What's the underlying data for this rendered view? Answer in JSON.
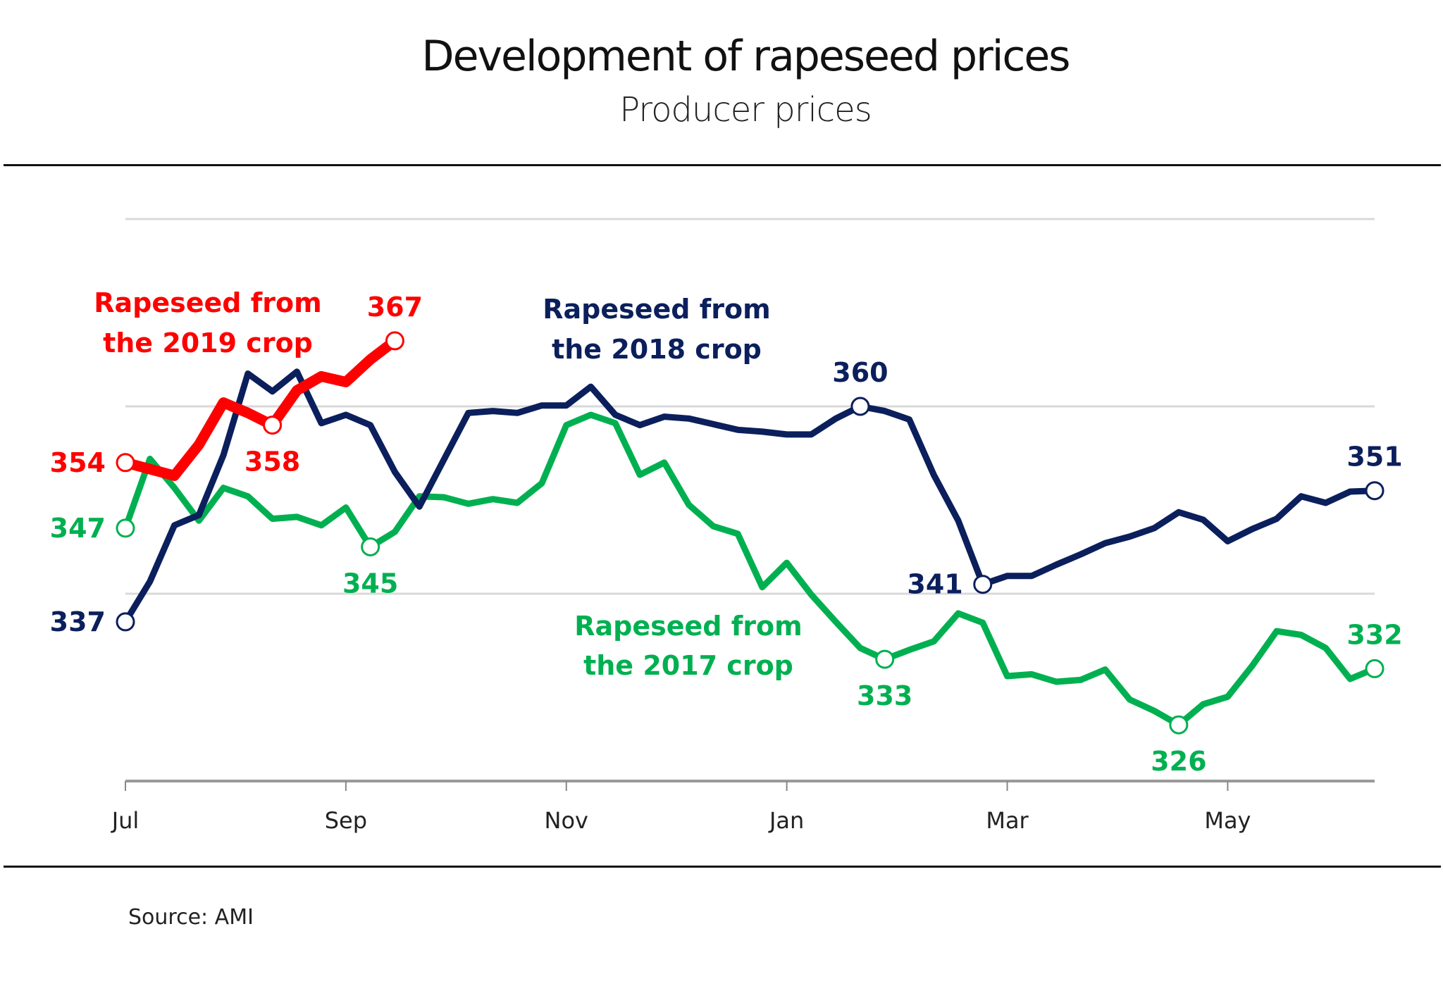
{
  "header": {
    "title": "Development of rapeseed prices",
    "subtitle": "Producer prices"
  },
  "footer": {
    "source": "Source: AMI"
  },
  "colors": {
    "crop2017": "#00b050",
    "crop2018": "#0b1f5c",
    "crop2019": "#ff0000",
    "grid": "#d9d9d9"
  },
  "chart_data": {
    "type": "line",
    "title": "Development of rapeseed prices",
    "subtitle": "Producer prices",
    "xlabel": "",
    "ylabel": "",
    "ylim": [
      320,
      380
    ],
    "yticks_gridlines": [
      340,
      360,
      380
    ],
    "grid": true,
    "x_unit": "weeks from start of July (crop year Jul–Jun)",
    "x_tick_labels": [
      {
        "label": "Jul",
        "week": 0
      },
      {
        "label": "Sep",
        "week": 9
      },
      {
        "label": "Nov",
        "week": 18
      },
      {
        "label": "Jan",
        "week": 27
      },
      {
        "label": "Mar",
        "week": 36
      },
      {
        "label": "May",
        "week": 45
      }
    ],
    "x_end_week": 51,
    "series": [
      {
        "name": "Rapeseed from the 2017 crop",
        "label_lines": [
          "Rapeseed from",
          "the 2017 crop"
        ],
        "color_key": "crop2017",
        "values": [
          347,
          354.4,
          351.3,
          347.8,
          351.3,
          350.4,
          348,
          348.2,
          347.3,
          349.2,
          345,
          346.6,
          350.4,
          350.3,
          349.6,
          350.1,
          349.7,
          351.8,
          358,
          359.1,
          358.2,
          352.7,
          354,
          349.5,
          347.2,
          346.4,
          340.7,
          343.3,
          339.9,
          337,
          334.2,
          333,
          334,
          334.9,
          337.9,
          336.9,
          331.2,
          331.4,
          330.6,
          330.8,
          331.9,
          328.7,
          327.5,
          326,
          328.2,
          329,
          332.3,
          336,
          335.6,
          334.2,
          330.9,
          332
        ],
        "annotations": [
          {
            "index": 0,
            "text": "347",
            "pos": "left"
          },
          {
            "index": 10,
            "text": "345",
            "pos": "below"
          },
          {
            "index": 31,
            "text": "333",
            "pos": "below"
          },
          {
            "index": 43,
            "text": "326",
            "pos": "below"
          },
          {
            "index": 51,
            "text": "332",
            "pos": "above"
          }
        ]
      },
      {
        "name": "Rapeseed from the 2018 crop",
        "label_lines": [
          "Rapeseed from",
          "the 2018 crop"
        ],
        "color_key": "crop2018",
        "values": [
          337,
          341.3,
          347.3,
          348.4,
          354.8,
          363.5,
          361.6,
          363.7,
          358.2,
          359.1,
          358,
          353,
          349.3,
          354.3,
          359.3,
          359.5,
          359.3,
          360.1,
          360.1,
          362.1,
          359.1,
          358,
          358.9,
          358.7,
          358.1,
          357.5,
          357.3,
          357,
          357,
          358.7,
          360,
          359.5,
          358.6,
          352.7,
          347.8,
          341,
          341.9,
          341.9,
          343.1,
          344.2,
          345.4,
          346.1,
          347,
          348.7,
          347.9,
          345.6,
          346.9,
          348,
          350.4,
          349.7,
          350.9,
          351
        ],
        "annotations": [
          {
            "index": 0,
            "text": "337",
            "pos": "left"
          },
          {
            "index": 30,
            "text": "360",
            "pos": "above"
          },
          {
            "index": 35,
            "text": "341",
            "pos": "left"
          },
          {
            "index": 51,
            "text": "351",
            "pos": "above"
          }
        ]
      },
      {
        "name": "Rapeseed from the 2019 crop",
        "label_lines": [
          "Rapeseed from",
          "the 2019 crop"
        ],
        "color_key": "crop2019",
        "values": [
          354,
          353.3,
          352.6,
          355.9,
          360.4,
          359.3,
          358,
          361.7,
          363.2,
          362.6,
          365,
          367
        ],
        "annotations": [
          {
            "index": 0,
            "text": "354",
            "pos": "left"
          },
          {
            "index": 6,
            "text": "358",
            "pos": "below"
          },
          {
            "index": 11,
            "text": "367",
            "pos": "above"
          }
        ]
      }
    ]
  }
}
